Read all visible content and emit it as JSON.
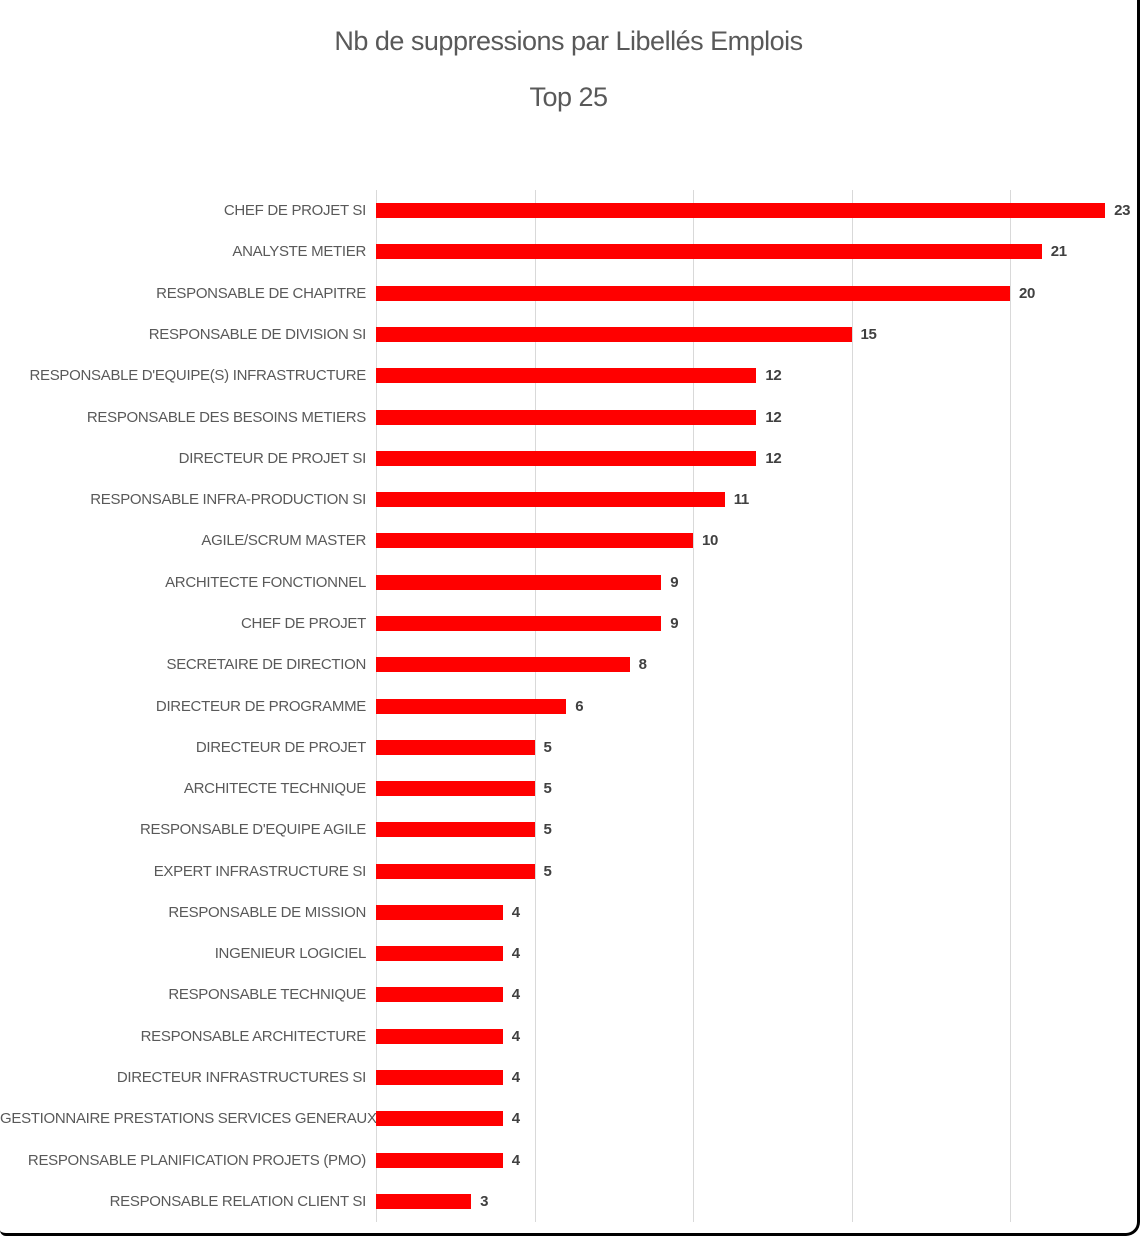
{
  "window": {
    "border_color": "#000000",
    "background_color": "#ffffff"
  },
  "chart_data": {
    "type": "bar",
    "orientation": "horizontal",
    "title": "Nb de suppressions par Libellés Emplois",
    "subtitle": "Top 25",
    "categories": [
      "CHEF DE PROJET SI",
      "ANALYSTE METIER",
      "RESPONSABLE DE CHAPITRE",
      "RESPONSABLE DE DIVISION SI",
      "RESPONSABLE D'EQUIPE(S) INFRASTRUCTURE",
      "RESPONSABLE DES BESOINS METIERS",
      "DIRECTEUR DE PROJET SI",
      "RESPONSABLE INFRA-PRODUCTION SI",
      "AGILE/SCRUM MASTER",
      "ARCHITECTE FONCTIONNEL",
      "CHEF DE PROJET",
      "SECRETAIRE DE DIRECTION",
      "DIRECTEUR DE PROGRAMME",
      "DIRECTEUR DE PROJET",
      "ARCHITECTE TECHNIQUE",
      "RESPONSABLE D'EQUIPE AGILE",
      "EXPERT INFRASTRUCTURE SI",
      "RESPONSABLE DE MISSION",
      "INGENIEUR LOGICIEL",
      "RESPONSABLE TECHNIQUE",
      "RESPONSABLE ARCHITECTURE",
      "DIRECTEUR INFRASTRUCTURES SI",
      "GESTIONNAIRE PRESTATIONS SERVICES GENERAUX",
      "RESPONSABLE PLANIFICATION PROJETS (PMO)",
      "RESPONSABLE RELATION CLIENT SI"
    ],
    "values": [
      23,
      21,
      20,
      15,
      12,
      12,
      12,
      11,
      10,
      9,
      9,
      8,
      6,
      5,
      5,
      5,
      5,
      4,
      4,
      4,
      4,
      4,
      4,
      4,
      3
    ],
    "data_labels": true,
    "xlabel": "",
    "ylabel": "",
    "xlim": [
      0,
      24
    ],
    "grid": true,
    "gridline_values": [
      0,
      5,
      10,
      15,
      20
    ],
    "legend": "none",
    "bar_color": "#ff0000",
    "category_label_color": "#595959",
    "value_label_color": "#404040",
    "title_color": "#595959",
    "gridline_color": "#d9d9d9"
  }
}
